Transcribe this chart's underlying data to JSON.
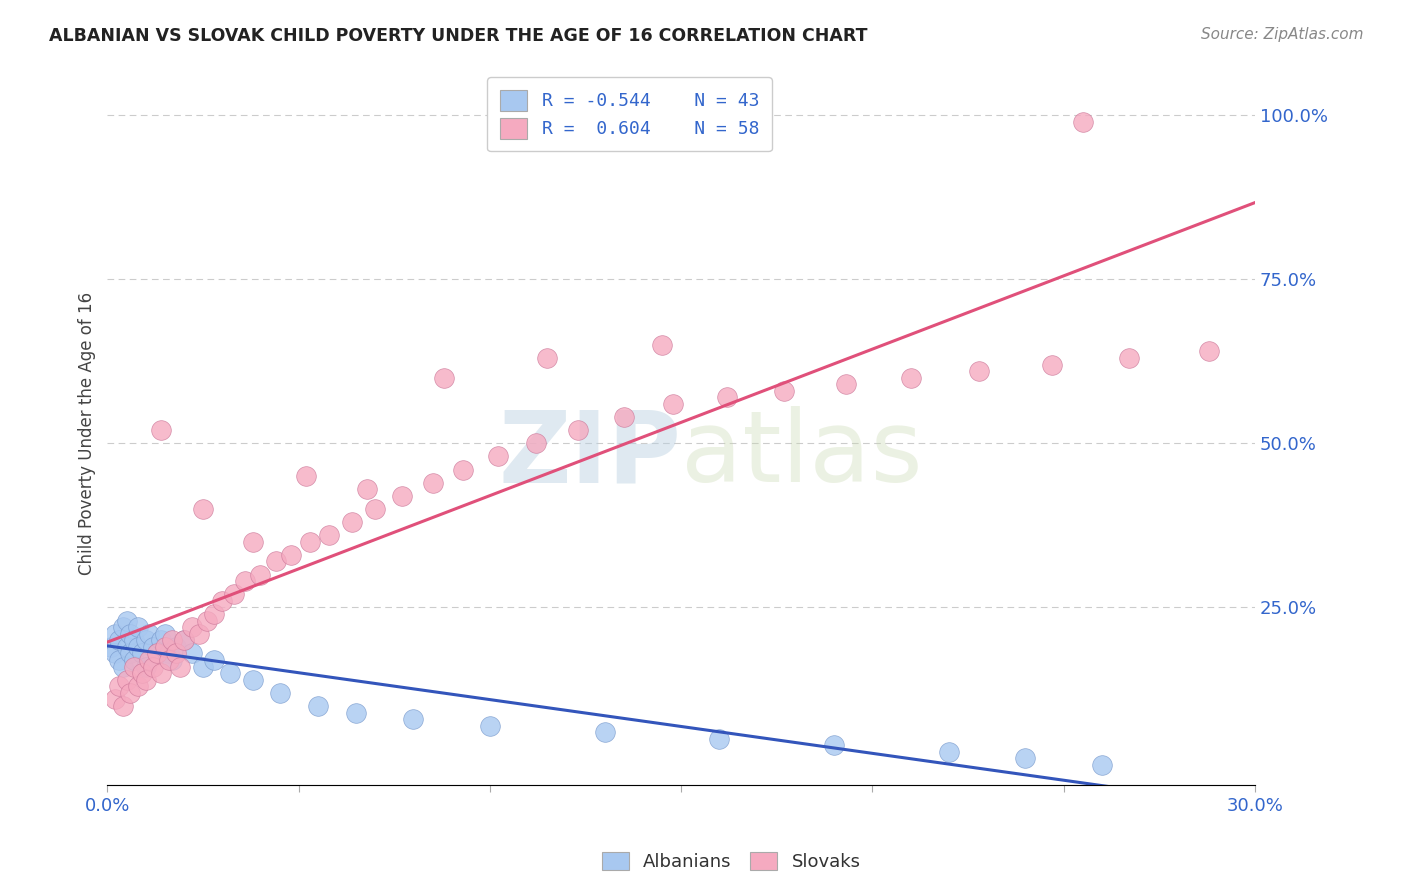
{
  "title": "ALBANIAN VS SLOVAK CHILD POVERTY UNDER THE AGE OF 16 CORRELATION CHART",
  "source": "Source: ZipAtlas.com",
  "ylabel": "Child Poverty Under the Age of 16",
  "albanian_R": "-0.544",
  "albanian_N": "43",
  "slovak_R": "0.604",
  "slovak_N": "58",
  "albanian_color": "#a8c8f0",
  "albanian_line_color": "#3355bb",
  "slovak_color": "#f5aac0",
  "slovak_line_color": "#e0507a",
  "xlim": [
    0.0,
    0.3
  ],
  "ylim": [
    -0.02,
    1.05
  ],
  "background_color": "#ffffff",
  "grid_color": "#cccccc",
  "alb_x": [
    0.001,
    0.002,
    0.002,
    0.003,
    0.003,
    0.004,
    0.004,
    0.005,
    0.005,
    0.006,
    0.006,
    0.007,
    0.007,
    0.008,
    0.008,
    0.009,
    0.01,
    0.01,
    0.011,
    0.012,
    0.013,
    0.014,
    0.015,
    0.016,
    0.017,
    0.018,
    0.02,
    0.022,
    0.025,
    0.028,
    0.032,
    0.038,
    0.045,
    0.055,
    0.065,
    0.08,
    0.1,
    0.13,
    0.16,
    0.19,
    0.22,
    0.24,
    0.26
  ],
  "alb_y": [
    0.19,
    0.21,
    0.18,
    0.17,
    0.2,
    0.22,
    0.16,
    0.19,
    0.23,
    0.18,
    0.21,
    0.2,
    0.17,
    0.19,
    0.22,
    0.18,
    0.2,
    0.16,
    0.21,
    0.19,
    0.18,
    0.2,
    0.21,
    0.18,
    0.17,
    0.19,
    0.2,
    0.18,
    0.16,
    0.17,
    0.15,
    0.14,
    0.12,
    0.1,
    0.09,
    0.08,
    0.07,
    0.06,
    0.05,
    0.04,
    0.03,
    0.02,
    0.01
  ],
  "slov_x": [
    0.002,
    0.003,
    0.004,
    0.005,
    0.006,
    0.007,
    0.008,
    0.009,
    0.01,
    0.011,
    0.012,
    0.013,
    0.014,
    0.015,
    0.016,
    0.017,
    0.018,
    0.019,
    0.02,
    0.022,
    0.024,
    0.026,
    0.028,
    0.03,
    0.033,
    0.036,
    0.04,
    0.044,
    0.048,
    0.053,
    0.058,
    0.064,
    0.07,
    0.077,
    0.085,
    0.093,
    0.102,
    0.112,
    0.123,
    0.135,
    0.148,
    0.162,
    0.177,
    0.193,
    0.21,
    0.228,
    0.247,
    0.267,
    0.288,
    0.014,
    0.025,
    0.038,
    0.052,
    0.068,
    0.088,
    0.115,
    0.145,
    0.255
  ],
  "slov_y": [
    0.11,
    0.13,
    0.1,
    0.14,
    0.12,
    0.16,
    0.13,
    0.15,
    0.14,
    0.17,
    0.16,
    0.18,
    0.15,
    0.19,
    0.17,
    0.2,
    0.18,
    0.16,
    0.2,
    0.22,
    0.21,
    0.23,
    0.24,
    0.26,
    0.27,
    0.29,
    0.3,
    0.32,
    0.33,
    0.35,
    0.36,
    0.38,
    0.4,
    0.42,
    0.44,
    0.46,
    0.48,
    0.5,
    0.52,
    0.54,
    0.56,
    0.57,
    0.58,
    0.59,
    0.6,
    0.61,
    0.62,
    0.63,
    0.64,
    0.52,
    0.4,
    0.35,
    0.45,
    0.43,
    0.6,
    0.63,
    0.65,
    0.99
  ]
}
